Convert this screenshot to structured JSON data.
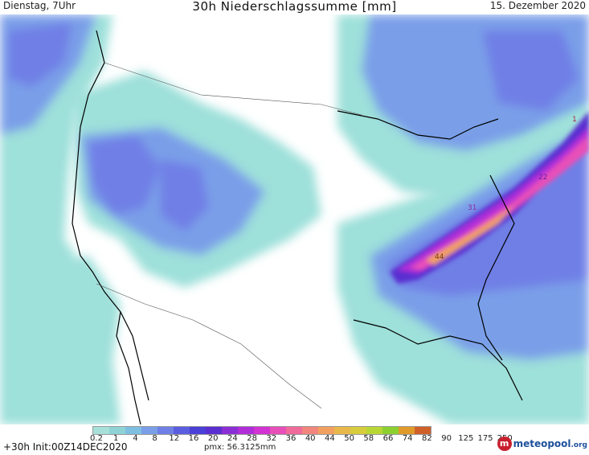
{
  "header": {
    "left": "Dienstag, 7Uhr",
    "title": "30h Niederschlagssumme [mm]",
    "right": "15. Dezember 2020"
  },
  "map": {
    "labels": [
      {
        "id": "max-1",
        "text": "1"
      },
      {
        "id": "max-22",
        "text": "22"
      },
      {
        "id": "max-31",
        "text": "31"
      },
      {
        "id": "max-44",
        "text": "44"
      }
    ]
  },
  "legend": {
    "ticks": [
      "0.2",
      "1",
      "4",
      "8",
      "12",
      "16",
      "20",
      "24",
      "28",
      "32",
      "36",
      "40",
      "44",
      "50",
      "58",
      "66",
      "74",
      "82",
      "90",
      "125",
      "175",
      "250"
    ],
    "colors": [
      "#a7e0d8",
      "#8fd3d6",
      "#7fbfe0",
      "#7a9fe8",
      "#6f7fe6",
      "#5b5de0",
      "#4a3fd6",
      "#5a2fd0",
      "#8a2fd6",
      "#b02ed8",
      "#d233d2",
      "#e84fb8",
      "#f06a9a",
      "#f2857c",
      "#f2a060",
      "#e8b84a",
      "#d6cc3c",
      "#b8d634",
      "#8cd030",
      "#e09a2a",
      "#d0602a"
    ]
  },
  "footer": {
    "left": "+30h Init:00Z14DEC2020",
    "pmx": "pmx: 56.3125mm",
    "logo_text": "meteopool",
    "logo_suffix": ".org"
  },
  "palette": {
    "no_precip": "#ffffff",
    "light": "#9ee0da",
    "medium": "#7a9fe8",
    "moderate": "#6f7fe6",
    "heavy": "#d233d2",
    "very_heavy": "#f2a060"
  }
}
